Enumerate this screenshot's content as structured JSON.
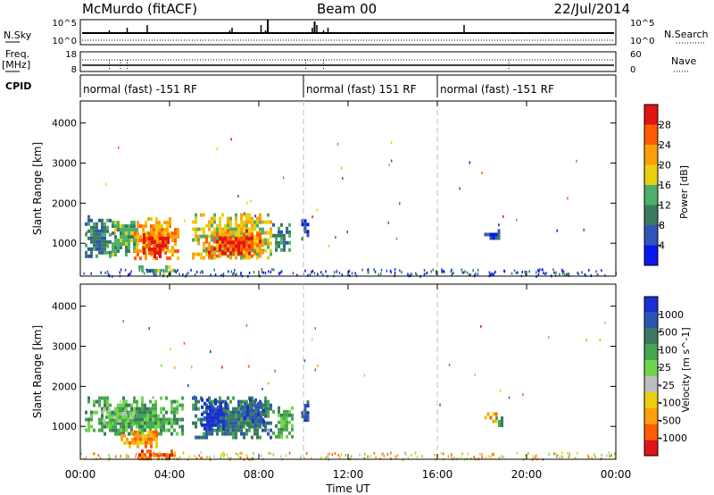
{
  "header": {
    "station": "McMurdo (fitACF)",
    "beam": "Beam 00",
    "date": "22/Jul/2014"
  },
  "top_panels": {
    "nsky_label": "N.Sky",
    "nsearch_label": "N.Search",
    "count_tick_high": "10^5",
    "count_tick_low": "10^0",
    "freq_label_1": "Freq.",
    "freq_label_2": "[MHz]",
    "freq_tick_high": "18",
    "freq_tick_low": "8",
    "nave_label": "Nave",
    "nave_tick_high": "60",
    "nave_tick_low": "0",
    "cpid_label": "CPID"
  },
  "cpid_segments": [
    {
      "label": "normal (fast) -151 RF",
      "start_hour": 0,
      "end_hour": 10
    },
    {
      "label": "normal (fast) 151 RF",
      "start_hour": 10,
      "end_hour": 16
    },
    {
      "label": "normal (fast) -151 RF",
      "start_hour": 16,
      "end_hour": 24
    }
  ],
  "colors": {
    "power_scale": [
      "#0a17f0",
      "#2f55b8",
      "#3a7a60",
      "#4bb06a",
      "#e8cf10",
      "#ff9f0a",
      "#ff5c00",
      "#e01515"
    ],
    "velocity_scale": [
      "#e01515",
      "#ff5c00",
      "#ff9f0a",
      "#e8cf10",
      "#bdbdbd",
      "#6fd64a",
      "#46a84e",
      "#3a7a60",
      "#2d56b3",
      "#1a2fd0"
    ],
    "cpid_divider": "#bdbdbd"
  },
  "chart_data": [
    {
      "type": "heatmap",
      "panel": "power",
      "ylabel": "Slant Range [km]",
      "colorbar_label": "Power [dB]",
      "colorbar_ticks": [
        "4",
        "8",
        "12",
        "16",
        "20",
        "24",
        "28"
      ],
      "colorbar_bins": 8,
      "x_ticks": [
        "00:00",
        "04:00",
        "08:00",
        "12:00",
        "16:00",
        "20:00",
        "00:00"
      ],
      "xlim": [
        0,
        24
      ],
      "y_ticks": [
        1000,
        2000,
        3000,
        4000
      ],
      "ylim": [
        180,
        4550
      ],
      "regions": [
        {
          "t0": 0.2,
          "t1": 1.4,
          "r0": 650,
          "r1": 1700,
          "level": 2
        },
        {
          "t0": 1.4,
          "t1": 2.6,
          "r0": 700,
          "r1": 1650,
          "level": 3
        },
        {
          "t0": 2.4,
          "t1": 4.4,
          "r0": 650,
          "r1": 1650,
          "level": 5
        },
        {
          "t0": 2.8,
          "t1": 4.0,
          "r0": 700,
          "r1": 1250,
          "level": 7
        },
        {
          "t0": 5.0,
          "t1": 8.6,
          "r0": 650,
          "r1": 1750,
          "level": 4
        },
        {
          "t0": 5.6,
          "t1": 8.2,
          "r0": 700,
          "r1": 1350,
          "level": 6
        },
        {
          "t0": 6.2,
          "t1": 7.6,
          "r0": 750,
          "r1": 1150,
          "level": 7
        },
        {
          "t0": 8.6,
          "t1": 9.4,
          "r0": 800,
          "r1": 1500,
          "level": 2
        },
        {
          "t0": 9.9,
          "t1": 10.2,
          "r0": 1100,
          "r1": 1600,
          "level": 1
        },
        {
          "t0": 18.1,
          "t1": 18.8,
          "r0": 1100,
          "r1": 1350,
          "level": 1
        },
        {
          "t0": 2.6,
          "t1": 4.2,
          "r0": 240,
          "r1": 450,
          "level": 3
        }
      ]
    },
    {
      "type": "heatmap",
      "panel": "velocity",
      "ylabel": "Slant Range [km]",
      "colorbar_label": "Velocity [m s^-1]",
      "colorbar_ticks": [
        "1000",
        "500",
        "100",
        "25",
        "-25",
        "-100",
        "-500",
        "-1000"
      ],
      "colorbar_bins": 10,
      "xlabel": "Time UT",
      "x_ticks": [
        "00:00",
        "04:00",
        "08:00",
        "12:00",
        "16:00",
        "20:00",
        "00:00"
      ],
      "xlim": [
        0,
        24
      ],
      "y_ticks": [
        1000,
        2000,
        3000,
        4000
      ],
      "ylim": [
        180,
        4550
      ],
      "regions": [
        {
          "t0": 0.2,
          "t1": 4.6,
          "r0": 800,
          "r1": 1750,
          "level": 6
        },
        {
          "t0": 1.0,
          "t1": 2.4,
          "r0": 1050,
          "r1": 1450,
          "level": 5
        },
        {
          "t0": 1.8,
          "t1": 3.4,
          "r0": 500,
          "r1": 900,
          "level": 2
        },
        {
          "t0": 5.0,
          "t1": 8.6,
          "r0": 750,
          "r1": 1750,
          "level": 7
        },
        {
          "t0": 5.4,
          "t1": 6.6,
          "r0": 900,
          "r1": 1700,
          "level": 9
        },
        {
          "t0": 7.2,
          "t1": 8.2,
          "r0": 1000,
          "r1": 1700,
          "level": 8
        },
        {
          "t0": 8.6,
          "t1": 9.5,
          "r0": 700,
          "r1": 1500,
          "level": 6
        },
        {
          "t0": 9.9,
          "t1": 10.2,
          "r0": 1100,
          "r1": 1650,
          "level": 8
        },
        {
          "t0": 18.1,
          "t1": 18.6,
          "r0": 1150,
          "r1": 1350,
          "level": 2
        },
        {
          "t0": 18.6,
          "t1": 18.9,
          "r0": 1000,
          "r1": 1250,
          "level": 7
        },
        {
          "t0": 2.6,
          "t1": 4.2,
          "r0": 240,
          "r1": 420,
          "level": 1
        }
      ]
    }
  ]
}
